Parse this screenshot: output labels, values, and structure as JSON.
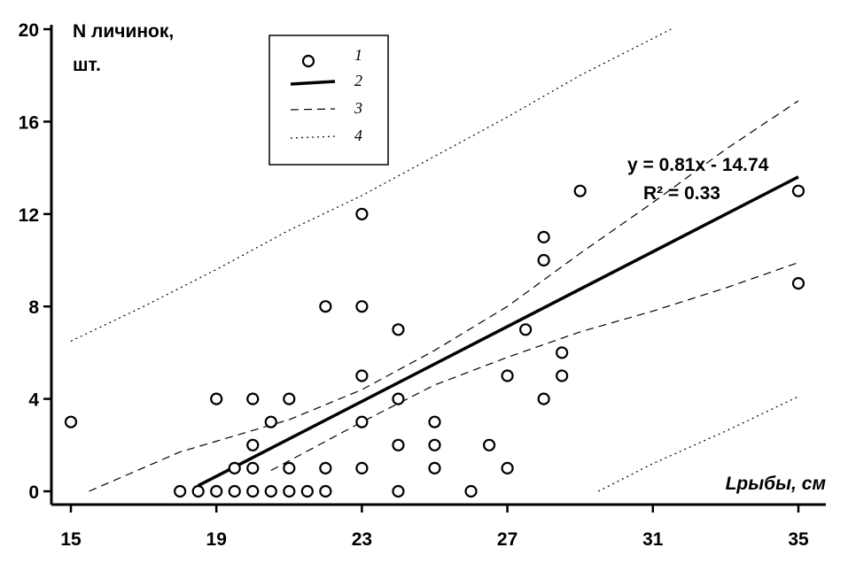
{
  "chart_data": {
    "type": "scatter",
    "ylabel_line1": "N личинок,",
    "ylabel_line2": "шт.",
    "xlabel": "Lрыбы, см",
    "xlim": [
      15,
      35
    ],
    "ylim": [
      0,
      20
    ],
    "x_ticks": [
      "15",
      "19",
      "23",
      "27",
      "31",
      "35"
    ],
    "y_ticks": [
      "0",
      "4",
      "8",
      "12",
      "16",
      "20"
    ],
    "legend": [
      {
        "key": "1",
        "style": "circle"
      },
      {
        "key": "2",
        "style": "solid"
      },
      {
        "key": "3",
        "style": "dash"
      },
      {
        "key": "4",
        "style": "dot"
      }
    ],
    "points": [
      [
        15,
        3
      ],
      [
        18,
        0
      ],
      [
        18.5,
        0
      ],
      [
        19,
        0
      ],
      [
        19.5,
        0
      ],
      [
        20,
        0
      ],
      [
        20.5,
        0
      ],
      [
        21,
        0
      ],
      [
        21.5,
        0
      ],
      [
        22,
        0
      ],
      [
        19.5,
        1
      ],
      [
        20,
        1
      ],
      [
        21,
        1
      ],
      [
        22,
        1
      ],
      [
        23,
        1
      ],
      [
        25,
        1
      ],
      [
        27,
        1
      ],
      [
        20,
        2
      ],
      [
        24,
        2
      ],
      [
        25,
        2
      ],
      [
        26.5,
        2
      ],
      [
        20.5,
        3
      ],
      [
        23,
        3
      ],
      [
        25,
        3
      ],
      [
        19,
        4
      ],
      [
        20,
        4
      ],
      [
        21,
        4
      ],
      [
        24,
        4
      ],
      [
        28,
        4
      ],
      [
        23,
        5
      ],
      [
        27,
        5
      ],
      [
        28.5,
        5
      ],
      [
        28.5,
        6
      ],
      [
        24,
        7
      ],
      [
        27.5,
        7
      ],
      [
        22,
        8
      ],
      [
        23,
        8
      ],
      [
        35,
        9
      ],
      [
        28,
        10
      ],
      [
        28,
        11
      ],
      [
        23,
        12
      ],
      [
        29,
        13
      ],
      [
        35,
        13
      ],
      [
        24,
        0
      ],
      [
        26,
        0
      ]
    ],
    "regression": {
      "slope": 0.81,
      "intercept": -14.74,
      "x_range": [
        18.5,
        35
      ]
    },
    "confidence_upper": [
      [
        15.5,
        0
      ],
      [
        18,
        1.7
      ],
      [
        21,
        3.1
      ],
      [
        23,
        4.4
      ],
      [
        25,
        6.1
      ],
      [
        27,
        8.0
      ],
      [
        29,
        10.3
      ],
      [
        31,
        12.5
      ],
      [
        33,
        14.8
      ],
      [
        35,
        16.9
      ]
    ],
    "confidence_lower": [
      [
        20.5,
        0.9
      ],
      [
        23,
        3.0
      ],
      [
        25,
        4.6
      ],
      [
        27,
        5.8
      ],
      [
        29,
        6.9
      ],
      [
        31,
        7.8
      ],
      [
        33,
        8.8
      ],
      [
        35,
        9.9
      ]
    ],
    "prediction_upper": [
      [
        15,
        6.5
      ],
      [
        17,
        8.0
      ],
      [
        19,
        9.6
      ],
      [
        21,
        11.3
      ],
      [
        23,
        12.8
      ],
      [
        25,
        14.5
      ],
      [
        27,
        16.2
      ],
      [
        29,
        18.0
      ],
      [
        31.5,
        20
      ]
    ],
    "prediction_lower": [
      [
        29.5,
        0
      ],
      [
        31,
        1.2
      ],
      [
        33,
        2.6
      ],
      [
        35,
        4.1
      ]
    ],
    "equation": "y = 0.81x - 14.74",
    "r2": "R² = 0.33",
    "grid": false
  }
}
